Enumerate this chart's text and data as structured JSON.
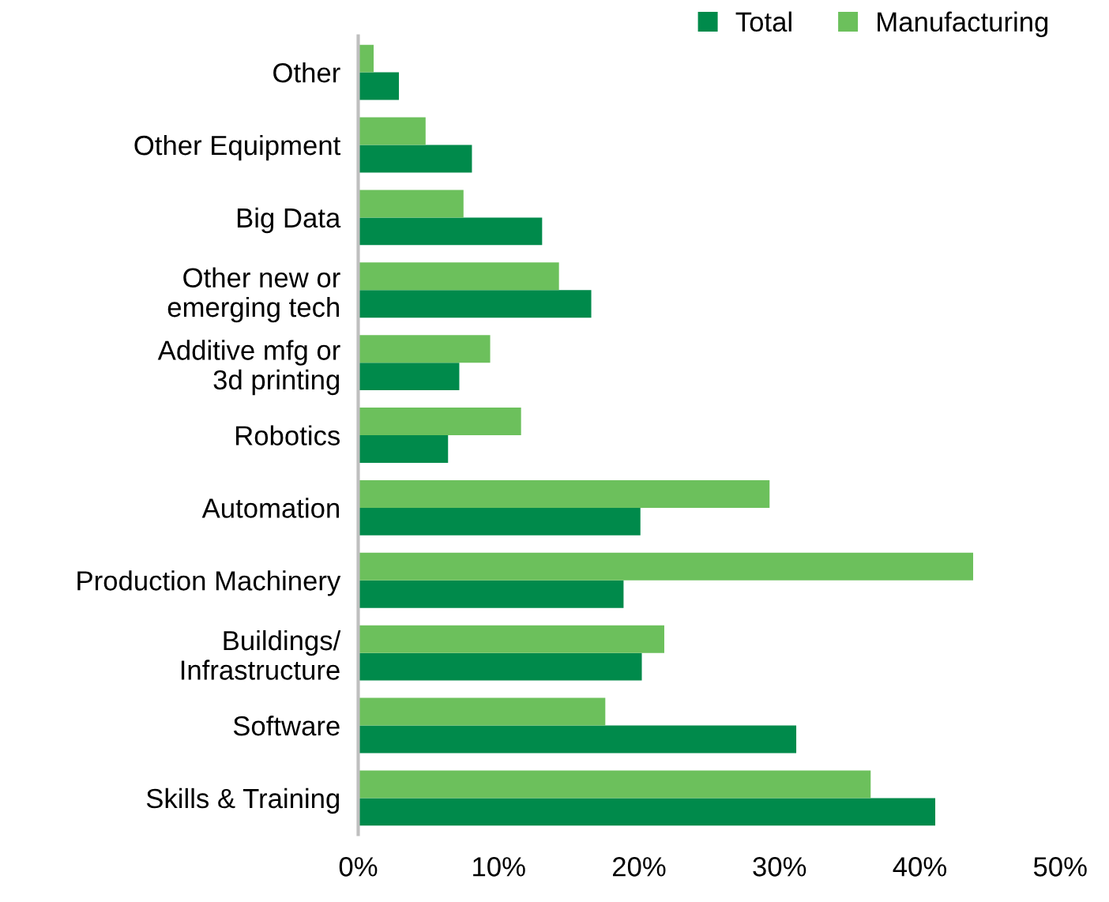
{
  "chart_data": {
    "type": "bar",
    "orientation": "horizontal",
    "categories": [
      "Other",
      "Other Equipment",
      "Big Data",
      "Other new or\nemerging tech",
      "Additive mfg or\n3d printing",
      "Robotics",
      "Automation",
      "Production Machinery",
      "Buildings/\nInfrastructure",
      "Software",
      "Skills & Training"
    ],
    "series": [
      {
        "name": "Total",
        "color": "#008a4b",
        "values": [
          2.9,
          8.1,
          13.1,
          16.6,
          7.2,
          6.4,
          20.1,
          18.9,
          20.2,
          31.2,
          41.1
        ]
      },
      {
        "name": "Manufacturing",
        "color": "#6cc05c",
        "values": [
          1.1,
          4.8,
          7.5,
          14.3,
          9.4,
          11.6,
          29.3,
          43.8,
          21.8,
          17.6,
          36.5
        ]
      }
    ],
    "xlim": [
      0,
      50
    ],
    "xticks": [
      {
        "value": 0,
        "label": "0%"
      },
      {
        "value": 10,
        "label": "10%"
      },
      {
        "value": 20,
        "label": "20%"
      },
      {
        "value": 30,
        "label": "30%"
      },
      {
        "value": 40,
        "label": "40%"
      },
      {
        "value": 50,
        "label": "50%"
      }
    ],
    "grid": false,
    "legend": "top right",
    "marker": "square"
  }
}
